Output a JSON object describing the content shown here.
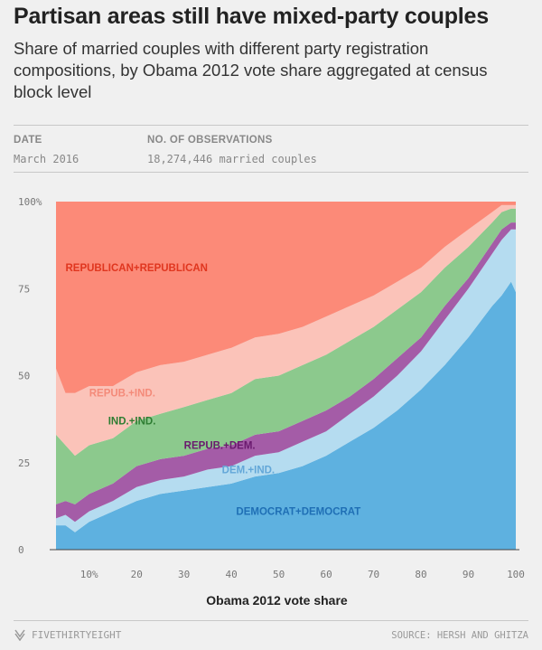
{
  "header": {
    "title": "Partisan areas still have mixed-party couples",
    "subtitle": "Share of married couples with different party registration compositions, by Obama 2012 vote share aggregated at census block level"
  },
  "meta": {
    "date_label": "DATE",
    "date_value": "March 2016",
    "obs_label": "NO. OF OBSERVATIONS",
    "obs_value": "18,274,446 married couples"
  },
  "footer": {
    "logo_text": "FIVETHIRTYEIGHT",
    "logo_icon": "fivethirtyeight-logo-icon",
    "source": "SOURCE: HERSH AND GHITZA"
  },
  "chart_data": {
    "type": "area",
    "stacked": true,
    "xlabel": "Obama 2012 vote share",
    "ylabel": "",
    "xlim": [
      3,
      100
    ],
    "ylim": [
      0,
      100
    ],
    "x_ticks": [
      "10%",
      "20",
      "30",
      "40",
      "50",
      "60",
      "70",
      "80",
      "90",
      "100"
    ],
    "y_ticks": [
      "0",
      "25",
      "50",
      "75",
      "100%"
    ],
    "grid": false,
    "x": [
      3,
      5,
      7,
      10,
      15,
      20,
      25,
      30,
      35,
      40,
      45,
      50,
      55,
      60,
      65,
      70,
      75,
      80,
      85,
      90,
      95,
      97,
      99,
      100
    ],
    "series": [
      {
        "name": "DEMOCRAT+DEMOCRAT",
        "color": "#5eb1e0",
        "label_color": "#1f6fb5",
        "values": [
          7,
          7,
          5,
          8,
          11,
          14,
          16,
          17,
          18,
          19,
          21,
          22,
          24,
          27,
          31,
          35,
          40,
          46,
          53,
          61,
          70,
          73,
          77,
          74
        ]
      },
      {
        "name": "DEM.+IND.",
        "color": "#b5dcf0",
        "label_color": "#63a7d8",
        "values": [
          2,
          3,
          3,
          3,
          3,
          4,
          4,
          4,
          5,
          5,
          6,
          6,
          7,
          7,
          8,
          9,
          10,
          11,
          13,
          14,
          15,
          16,
          15,
          18
        ]
      },
      {
        "name": "REPUB.+DEM.",
        "color": "#a45ca7",
        "label_color": "#6a1a6e",
        "values": [
          4,
          4,
          5,
          5,
          5,
          6,
          6,
          6,
          6,
          6,
          6,
          6,
          6,
          6,
          5,
          5,
          5,
          4,
          4,
          3,
          3,
          3,
          2,
          2
        ]
      },
      {
        "name": "IND.+IND.",
        "color": "#8cc98d",
        "label_color": "#2e7d32",
        "values": [
          20,
          16,
          14,
          14,
          13,
          13,
          13,
          14,
          14,
          15,
          16,
          16,
          16,
          16,
          16,
          15,
          14,
          13,
          11,
          9,
          6,
          5,
          4,
          4
        ]
      },
      {
        "name": "REPUB.+IND.",
        "color": "#fbc3b9",
        "label_color": "#f48a79",
        "values": [
          19,
          15,
          18,
          17,
          15,
          14,
          14,
          13,
          13,
          13,
          12,
          12,
          11,
          11,
          10,
          9,
          8,
          7,
          6,
          5,
          3,
          2,
          1,
          1
        ]
      },
      {
        "name": "REPUBLICAN+REPUBLICAN",
        "color": "#fc8a78",
        "label_color": "#e0361f",
        "values": [
          48,
          55,
          55,
          53,
          53,
          49,
          47,
          46,
          44,
          42,
          39,
          38,
          36,
          33,
          30,
          27,
          23,
          19,
          13,
          8,
          3,
          1,
          1,
          1
        ]
      }
    ]
  }
}
